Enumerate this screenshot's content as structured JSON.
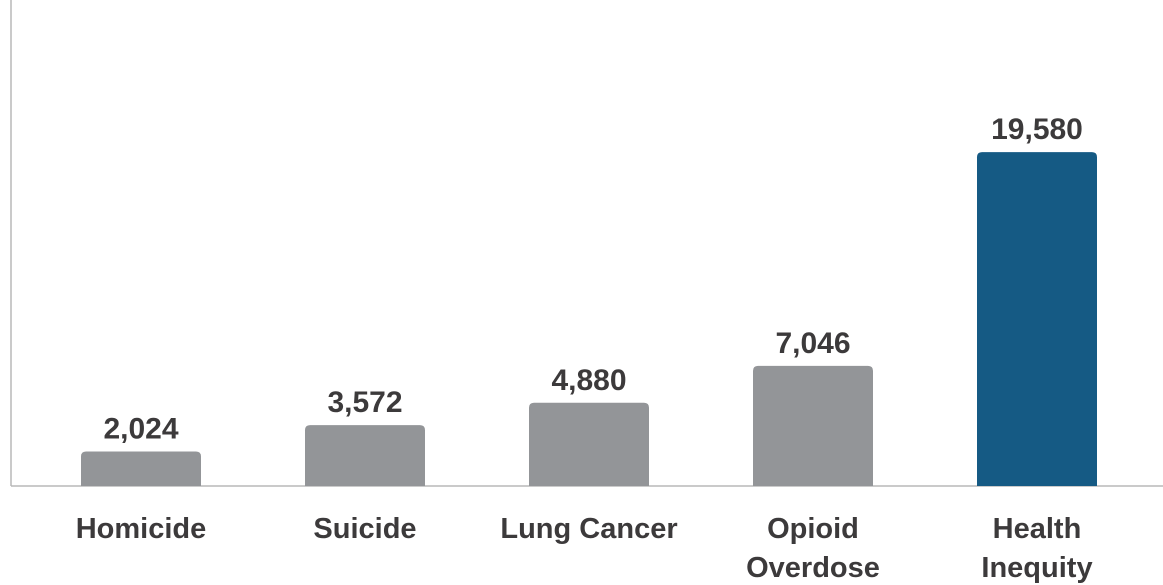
{
  "chart_data": {
    "type": "bar",
    "categories": [
      "Homicide",
      "Suicide",
      "Lung Cancer",
      "Opioid Overdose",
      "Health Inequity"
    ],
    "category_lines": [
      [
        "Homicide"
      ],
      [
        "Suicide"
      ],
      [
        "Lung Cancer"
      ],
      [
        "Opioid",
        "Overdose"
      ],
      [
        "Health",
        "Inequity"
      ]
    ],
    "values": [
      2024,
      3572,
      4880,
      7046,
      19580
    ],
    "value_labels": [
      "2,024",
      "3,572",
      "4,880",
      "7,046",
      "19,580"
    ],
    "bar_colors": [
      "#939598",
      "#939598",
      "#939598",
      "#939598",
      "#155a84"
    ],
    "title": "",
    "xlabel": "",
    "ylabel": "",
    "ylim": [
      0,
      28500
    ],
    "grid": false,
    "legend": "none"
  }
}
